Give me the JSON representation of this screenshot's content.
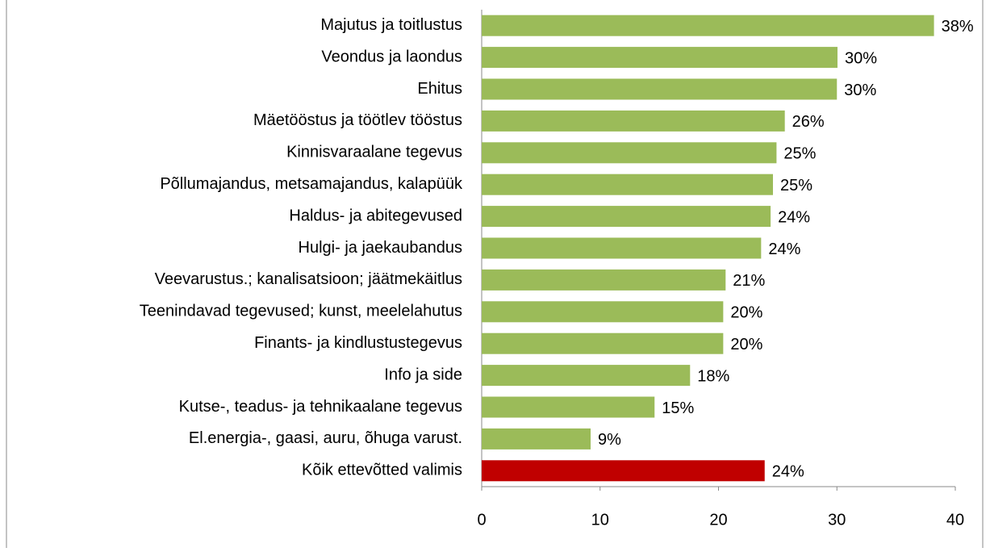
{
  "chart_data": {
    "type": "barh",
    "categories": [
      "Majutus ja toitlustus",
      "Veondus ja laondus",
      "Ehitus",
      "Mäetööstus ja töötlev tööstus",
      "Kinnisvaraalane tegevus",
      "Põllumajandus, metsamajandus, kalapüük",
      "Haldus- ja abitegevused",
      "Hulgi- ja jaekaubandus",
      "Veevarustus.; kanalisatsioon; jäätmekäitlus",
      "Teenindavad tegevused; kunst, meelelahutus",
      "Finants- ja kindlustustegevus",
      "Info ja side",
      "Kutse-, teadus- ja tehnikaalane tegevus",
      "El.energia-, gaasi, auru, õhuga varust.",
      "Kõik ettevõtted valimis"
    ],
    "values": [
      38.2,
      30.05,
      30,
      25.6,
      24.9,
      24.6,
      24.4,
      23.6,
      20.6,
      20.4,
      20.4,
      17.6,
      14.6,
      9.2,
      23.9
    ],
    "value_labels": [
      "38%",
      "30%",
      "30%",
      "26%",
      "25%",
      "25%",
      "24%",
      "24%",
      "21%",
      "20%",
      "20%",
      "18%",
      "15%",
      "9%",
      "24%"
    ],
    "colors": [
      "#9bbb59",
      "#9bbb59",
      "#9bbb59",
      "#9bbb59",
      "#9bbb59",
      "#9bbb59",
      "#9bbb59",
      "#9bbb59",
      "#9bbb59",
      "#9bbb59",
      "#9bbb59",
      "#9bbb59",
      "#9bbb59",
      "#9bbb59",
      "#c00000"
    ],
    "xlim": [
      0,
      40
    ],
    "xticks": [
      0,
      10,
      20,
      30,
      40
    ],
    "grid": false
  }
}
